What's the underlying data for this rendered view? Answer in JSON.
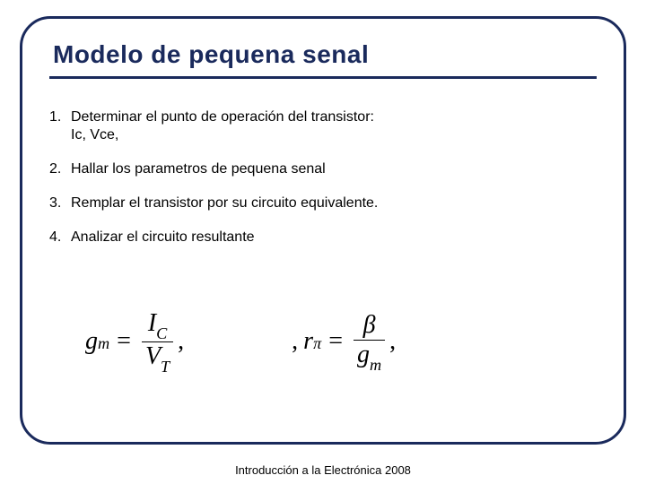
{
  "slide": {
    "title": "Modelo de pequena senal",
    "title_color": "#1a2a5c",
    "title_fontsize": 28,
    "border_color": "#1a2a5c",
    "border_width": 3,
    "border_radius": 34,
    "background_color": "#ffffff"
  },
  "steps": [
    {
      "n": "1.",
      "text": "Determinar el punto de operación del transistor: Ic, Vce,"
    },
    {
      "n": "2.",
      "text": "Hallar los parametros de pequena senal"
    },
    {
      "n": "3.",
      "text": "Remplar el transistor por su circuito equivalente."
    },
    {
      "n": "4.",
      "text": "Analizar el circuito resultante"
    }
  ],
  "content_style": {
    "fontsize": 16,
    "color": "#000000",
    "line_spacing": 1.25
  },
  "formulas": {
    "font_family": "Times New Roman",
    "fontsize": 28,
    "color": "#000000",
    "gm": {
      "lhs": "g",
      "lhs_sub": "m",
      "eq": "=",
      "num_sym": "I",
      "num_sub": "C",
      "den_sym": "V",
      "den_sub": "T",
      "trailing": ","
    },
    "rpi": {
      "prefix": ",",
      "lhs": "r",
      "lhs_sub": "π",
      "eq": "=",
      "num_sym": "β",
      "den_sym": "g",
      "den_sub": "m",
      "trailing": ","
    }
  },
  "footer": {
    "text": "Introducción a la Electrónica 2008",
    "fontsize": 13,
    "color": "#000000"
  }
}
